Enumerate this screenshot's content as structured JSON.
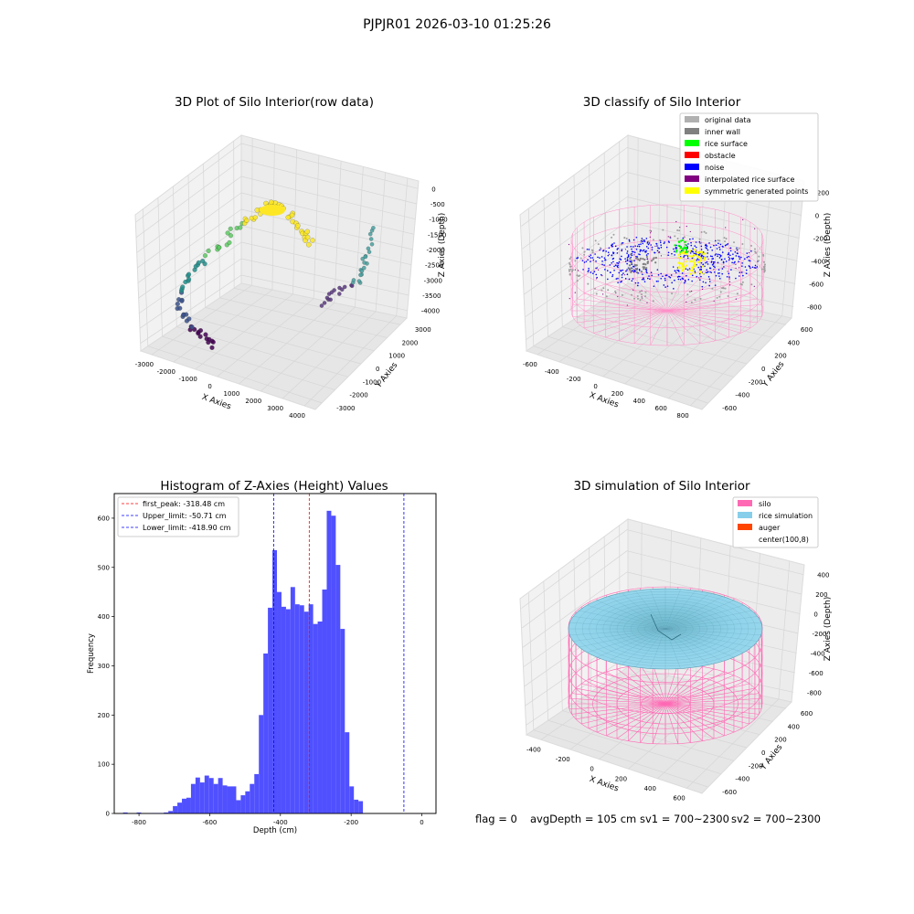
{
  "figure": {
    "suptitle": "PJPJR01 2026-03-10 01:25:26",
    "status_line": {
      "flag": "flag = 0",
      "avg_depth": "avgDepth = 105 cm",
      "sv1": "sv1 = 700~2300",
      "sv2": "sv2 = 700~2300"
    }
  },
  "chart_data": [
    {
      "type": "scatter",
      "projection": "3d",
      "title": "3D Plot of Silo Interior(row data)",
      "xlabel": "X Axies",
      "ylabel": "Y Axies",
      "zlabel": "Z Axies (Depth)",
      "x_ticks": [
        "-3000",
        "-2000",
        "-1000",
        "0",
        "1000",
        "2000",
        "3000",
        "4000"
      ],
      "y_ticks": [
        "-3000",
        "-2000",
        "-1000",
        "0",
        "1000",
        "2000",
        "3000"
      ],
      "z_ticks": [
        "0",
        "-500",
        "-1000",
        "-1500",
        "-2000",
        "-2500",
        "-3000",
        "-3500",
        "-4000"
      ],
      "colormap": "viridis",
      "marker_color_sample": [
        "#440154",
        "#3b528b",
        "#21908d",
        "#5dc963",
        "#fde725"
      ]
    },
    {
      "type": "scatter",
      "projection": "3d",
      "title": "3D classify of Silo Interior",
      "xlabel": "X Axies",
      "ylabel": "Y Axies",
      "zlabel": "Z Axies (Depth)",
      "x_ticks": [
        "-600",
        "-400",
        "-200",
        "0",
        "200",
        "400",
        "600",
        "800"
      ],
      "y_ticks": [
        "-600",
        "-400",
        "-200",
        "0",
        "200",
        "400",
        "600"
      ],
      "z_ticks": [
        "200",
        "0",
        "-200",
        "-400",
        "-600",
        "-800"
      ],
      "legend_position": "top-right",
      "legend": [
        {
          "label": "original data",
          "color": "#b0b0b0"
        },
        {
          "label": "inner wall",
          "color": "#808080"
        },
        {
          "label": "rice surface",
          "color": "#00ff00"
        },
        {
          "label": "obstacle",
          "color": "#ff0000"
        },
        {
          "label": "noise",
          "color": "#0000ff"
        },
        {
          "label": "interpolated rice surface",
          "color": "#800080"
        },
        {
          "label": "symmetric generated points",
          "color": "#ffff00"
        }
      ],
      "wireframe_color": "#ff69b4"
    },
    {
      "type": "bar",
      "title": "Histogram of Z-Axies (Height) Values",
      "xlabel": "Depth (cm)",
      "ylabel": "Frequency",
      "bar_color": "#4d4dff",
      "bin_width": 12.8,
      "bins_start": [
        -845,
        -832.2,
        -819.4,
        -806.6,
        -793.8,
        -781,
        -768.2,
        -755.4,
        -742.6,
        -729.8,
        -717,
        -704.2,
        -691.4,
        -678.6,
        -665.8,
        -653,
        -640.2,
        -627.4,
        -614.6,
        -601.8,
        -589,
        -576.2,
        -563.4,
        -550.6,
        -537.8,
        -525,
        -512.2,
        -499.4,
        -486.6,
        -473.8,
        -461,
        -448.2,
        -435.4,
        -422.6,
        -409.8,
        -397,
        -384.2,
        -371.4,
        -358.6,
        -345.8,
        -333,
        -320.2,
        -307.4,
        -294.6,
        -281.8,
        -269,
        -256.2,
        -243.4,
        -230.6,
        -217.8,
        -205,
        -192.2,
        -179.4,
        -166.6,
        -153.8,
        -141,
        -128.2,
        -115.4,
        -102.6,
        -89.8,
        -77,
        -64.2,
        -51.4,
        -38.6,
        -25.8,
        -13
      ],
      "values": [
        2,
        0,
        0,
        2,
        0,
        0,
        1,
        1,
        1,
        2,
        5,
        15,
        22,
        30,
        32,
        60,
        73,
        63,
        77,
        72,
        60,
        72,
        57,
        55,
        55,
        27,
        37,
        45,
        60,
        80,
        200,
        325,
        418,
        535,
        450,
        420,
        415,
        460,
        425,
        423,
        410,
        425,
        385,
        390,
        455,
        615,
        605,
        505,
        375,
        165,
        55,
        28,
        25,
        0,
        0,
        0,
        0,
        0,
        0,
        0,
        0,
        0,
        0,
        0,
        0,
        0
      ],
      "xlim": [
        -870,
        40
      ],
      "ylim": [
        0,
        650
      ],
      "x_ticks": [
        -800,
        -600,
        -400,
        -200,
        0
      ],
      "y_ticks": [
        0,
        100,
        200,
        300,
        400,
        500,
        600
      ],
      "vlines": [
        {
          "label": "first_peak: -318.48 cm",
          "x": -318.48,
          "color": "#ff0000"
        },
        {
          "label": "Upper_limit: -50.71 cm",
          "x": -50.71,
          "color": "#0000ff"
        },
        {
          "label": "Lower_limit: -418.90 cm",
          "x": -418.9,
          "color": "#0000ff"
        }
      ],
      "legend_position": "top-left"
    },
    {
      "type": "surface",
      "projection": "3d",
      "title": "3D simulation of Silo Interior",
      "xlabel": "X Axies",
      "ylabel": "Y Axies",
      "zlabel": "Z Axies (Depth)",
      "x_ticks": [
        "-400",
        "-200",
        "0",
        "200",
        "400",
        "600"
      ],
      "y_ticks": [
        "-600",
        "-400",
        "-200",
        "0",
        "200",
        "400",
        "600"
      ],
      "z_ticks": [
        "400",
        "200",
        "0",
        "-200",
        "-400",
        "-600",
        "-800"
      ],
      "legend_position": "top-right",
      "legend": [
        {
          "label": "silo",
          "color": "#ff69b4"
        },
        {
          "label": "rice simulation",
          "color": "#87ceeb"
        },
        {
          "label": "auger",
          "color": "#ff4500"
        },
        {
          "label": "center(100,8)",
          "color": "#ffffff"
        }
      ]
    }
  ]
}
